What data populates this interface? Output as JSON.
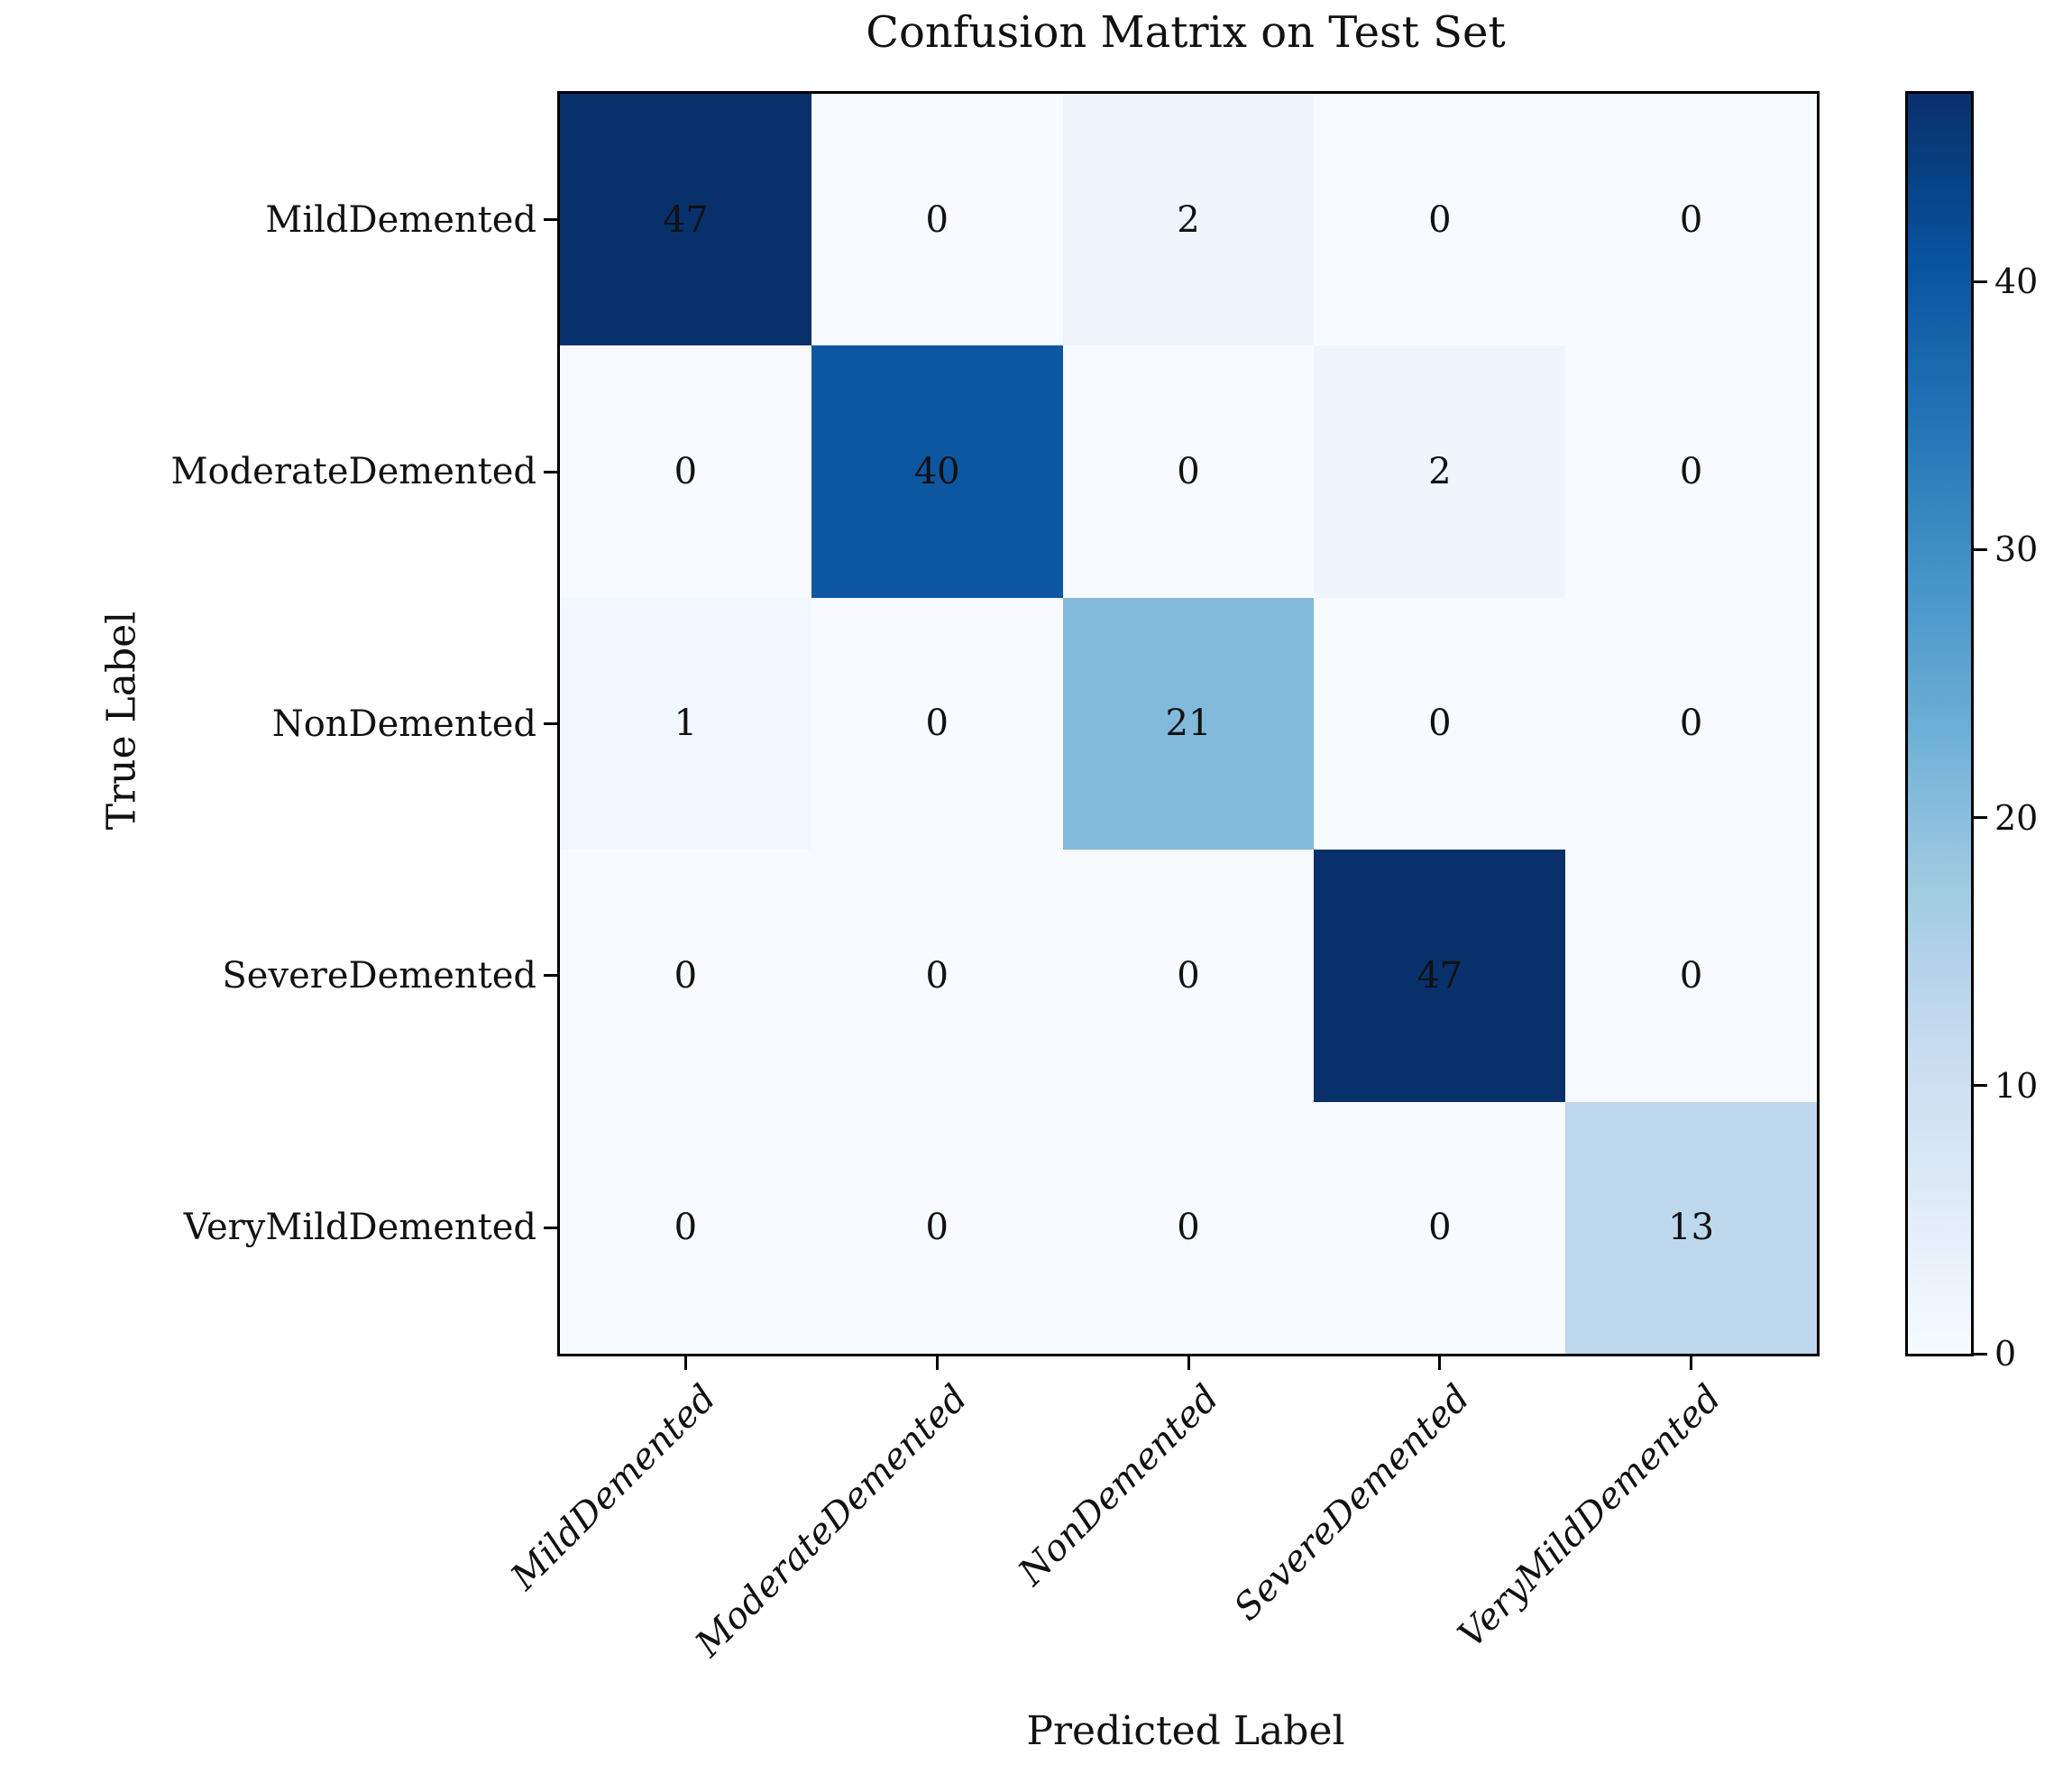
{
  "chart_data": {
    "type": "heatmap",
    "title": "Confusion Matrix on Test Set",
    "xlabel": "Predicted Label",
    "ylabel": "True Label",
    "categories": [
      "MildDemented",
      "ModerateDemented",
      "NonDemented",
      "SevereDemented",
      "VeryMildDemented"
    ],
    "x_tick_labels": [
      "MildDemented",
      "ModerateDemented",
      "NonDemented",
      "SevereDemented",
      "VeryMildDemented"
    ],
    "y_tick_labels": [
      "MildDemented",
      "ModerateDemented",
      "NonDemented",
      "SevereDemented",
      "VeryMildDemented"
    ],
    "matrix": [
      [
        47,
        0,
        2,
        0,
        0
      ],
      [
        0,
        40,
        0,
        2,
        0
      ],
      [
        1,
        0,
        21,
        0,
        0
      ],
      [
        0,
        0,
        0,
        47,
        0
      ],
      [
        0,
        0,
        0,
        0,
        13
      ]
    ],
    "annotation_color": "#111111",
    "grid": false,
    "colorbar": {
      "vmin": 0,
      "vmax": 47,
      "ticks": [
        0,
        10,
        20,
        30,
        40
      ],
      "position": "right"
    },
    "colormap": {
      "name": "Blues",
      "stops": [
        {
          "pos": 0.0,
          "color": "#f7fbff"
        },
        {
          "pos": 0.125,
          "color": "#deebf7"
        },
        {
          "pos": 0.25,
          "color": "#c6dbef"
        },
        {
          "pos": 0.375,
          "color": "#9ecae1"
        },
        {
          "pos": 0.5,
          "color": "#6baed6"
        },
        {
          "pos": 0.625,
          "color": "#4292c6"
        },
        {
          "pos": 0.75,
          "color": "#2171b5"
        },
        {
          "pos": 0.875,
          "color": "#08519c"
        },
        {
          "pos": 1.0,
          "color": "#08306b"
        }
      ]
    }
  }
}
